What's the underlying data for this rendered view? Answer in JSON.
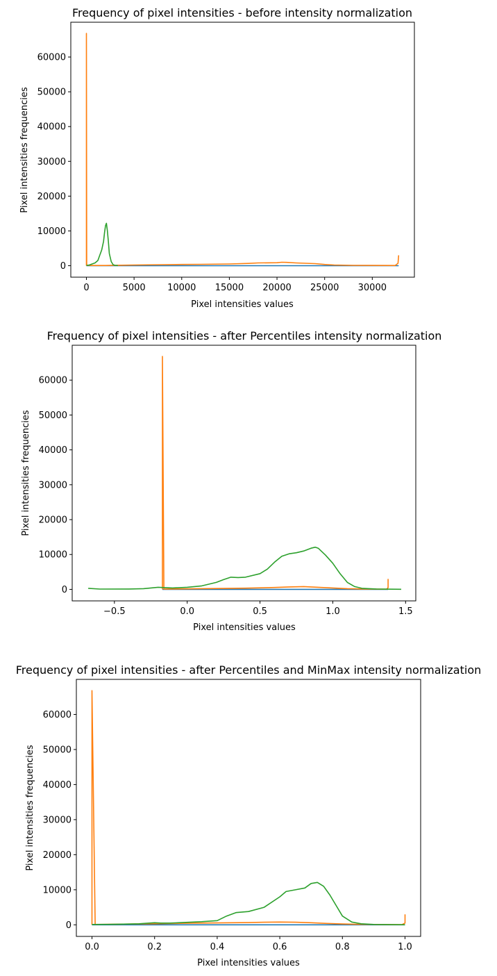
{
  "chart_data": [
    {
      "type": "line",
      "title": "Frequency of pixel intensities - before intensity normalization",
      "xlabel": "Pixel intensities values",
      "ylabel": "Pixel intensities frequencies",
      "xlim": [
        -1640,
        34420
      ],
      "ylim": [
        -3300,
        70000
      ],
      "xticks": [
        0,
        5000,
        10000,
        15000,
        20000,
        25000,
        30000
      ],
      "yticks": [
        0,
        10000,
        20000,
        30000,
        40000,
        50000,
        60000
      ],
      "xtick_labels": [
        "0",
        "5000",
        "10000",
        "15000",
        "20000",
        "25000",
        "30000"
      ],
      "ytick_labels": [
        "0",
        "10000",
        "20000",
        "30000",
        "40000",
        "50000",
        "60000"
      ],
      "grid": false,
      "series": [
        {
          "color": "#1f77b4",
          "x": [
            0,
            16384,
            32767
          ],
          "y": [
            0,
            0,
            0
          ]
        },
        {
          "color": "#ff7f0e",
          "x": [
            0,
            0,
            30,
            600,
            2000,
            3000,
            5000,
            8000,
            10000,
            12000,
            15000,
            17000,
            18000,
            20000,
            20500,
            21000,
            22000,
            24000,
            25000,
            26000,
            28000,
            30000,
            32400,
            32700,
            32767
          ],
          "y": [
            0,
            66800,
            120,
            60,
            60,
            120,
            200,
            300,
            350,
            400,
            500,
            650,
            800,
            850,
            1000,
            950,
            800,
            600,
            350,
            200,
            100,
            80,
            60,
            700,
            3000
          ]
        },
        {
          "color": "#2ca02c",
          "x": [
            0,
            300,
            600,
            900,
            1200,
            1400,
            1600,
            1800,
            1900,
            2000,
            2100,
            2200,
            2300,
            2400,
            2600,
            2800,
            3000,
            3300
          ],
          "y": [
            50,
            200,
            500,
            800,
            1500,
            3000,
            4500,
            7000,
            9500,
            11500,
            12200,
            10000,
            7000,
            3500,
            1200,
            300,
            100,
            30
          ]
        }
      ]
    },
    {
      "type": "line",
      "title": "Frequency of pixel intensities - after Percentiles intensity normalization",
      "xlabel": "Pixel intensities values",
      "ylabel": "Pixel intensities frequencies",
      "xlim": [
        -0.79,
        1.57
      ],
      "ylim": [
        -3300,
        70000
      ],
      "xticks": [
        -0.5,
        0.0,
        0.5,
        1.0,
        1.5
      ],
      "yticks": [
        0,
        10000,
        20000,
        30000,
        40000,
        50000,
        60000
      ],
      "xtick_labels": [
        "−0.5",
        "0.0",
        "0.5",
        "1.0",
        "1.5"
      ],
      "ytick_labels": [
        "0",
        "10000",
        "20000",
        "30000",
        "40000",
        "50000",
        "60000"
      ],
      "grid": false,
      "series": [
        {
          "color": "#1f77b4",
          "x": [
            -0.17,
            0.5,
            1.38
          ],
          "y": [
            0,
            0,
            0
          ]
        },
        {
          "color": "#ff7f0e",
          "x": [
            -0.17,
            -0.17,
            -0.16,
            0.0,
            0.2,
            0.4,
            0.6,
            0.7,
            0.8,
            0.9,
            1.0,
            1.1,
            1.2,
            1.3,
            1.37,
            1.38,
            1.38
          ],
          "y": [
            0,
            66800,
            100,
            150,
            250,
            350,
            550,
            700,
            800,
            600,
            400,
            200,
            100,
            60,
            50,
            500,
            3000
          ]
        },
        {
          "color": "#2ca02c",
          "x": [
            -0.68,
            -0.6,
            -0.4,
            -0.3,
            -0.2,
            -0.15,
            -0.1,
            0.0,
            0.05,
            0.1,
            0.15,
            0.2,
            0.25,
            0.3,
            0.35,
            0.4,
            0.5,
            0.55,
            0.6,
            0.65,
            0.7,
            0.75,
            0.8,
            0.85,
            0.88,
            0.9,
            0.95,
            1.0,
            1.05,
            1.1,
            1.15,
            1.2,
            1.3,
            1.47
          ],
          "y": [
            300,
            80,
            100,
            200,
            600,
            500,
            400,
            600,
            800,
            1000,
            1500,
            2000,
            2800,
            3500,
            3400,
            3500,
            4500,
            5800,
            7800,
            9500,
            10200,
            10500,
            11000,
            11800,
            12100,
            11800,
            9800,
            7500,
            4500,
            2000,
            800,
            300,
            100,
            30
          ]
        }
      ]
    },
    {
      "type": "line",
      "title": "Frequency of pixel intensities - after Percentiles and MinMax intensity normalization",
      "xlabel": "Pixel intensities values",
      "ylabel": "Pixel intensities frequencies",
      "xlim": [
        -0.05,
        1.05
      ],
      "ylim": [
        -3300,
        70000
      ],
      "xticks": [
        0.0,
        0.2,
        0.4,
        0.6,
        0.8,
        1.0
      ],
      "yticks": [
        0,
        10000,
        20000,
        30000,
        40000,
        50000,
        60000
      ],
      "xtick_labels": [
        "0.0",
        "0.2",
        "0.4",
        "0.6",
        "0.8",
        "1.0"
      ],
      "ytick_labels": [
        "0",
        "10000",
        "20000",
        "30000",
        "40000",
        "50000",
        "60000"
      ],
      "grid": false,
      "series": [
        {
          "color": "#1f77b4",
          "x": [
            0.0,
            0.5,
            1.0
          ],
          "y": [
            0,
            0,
            0
          ]
        },
        {
          "color": "#ff7f0e",
          "x": [
            0.0,
            0.0,
            0.01,
            0.1,
            0.2,
            0.3,
            0.4,
            0.5,
            0.55,
            0.6,
            0.65,
            0.7,
            0.75,
            0.8,
            0.85,
            0.9,
            0.99,
            1.0,
            1.0
          ],
          "y": [
            0,
            66800,
            100,
            200,
            300,
            450,
            550,
            650,
            750,
            800,
            750,
            600,
            400,
            250,
            150,
            100,
            50,
            500,
            3000
          ]
        },
        {
          "color": "#2ca02c",
          "x": [
            0.0,
            0.05,
            0.1,
            0.15,
            0.2,
            0.22,
            0.25,
            0.3,
            0.35,
            0.4,
            0.43,
            0.46,
            0.5,
            0.55,
            0.6,
            0.62,
            0.65,
            0.68,
            0.7,
            0.72,
            0.74,
            0.76,
            0.78,
            0.8,
            0.83,
            0.86,
            0.9,
            1.0
          ],
          "y": [
            100,
            120,
            200,
            300,
            600,
            500,
            500,
            700,
            900,
            1200,
            2500,
            3500,
            3800,
            5000,
            8000,
            9500,
            10000,
            10500,
            11800,
            12100,
            11000,
            8500,
            5500,
            2500,
            800,
            300,
            100,
            30
          ]
        }
      ]
    }
  ]
}
